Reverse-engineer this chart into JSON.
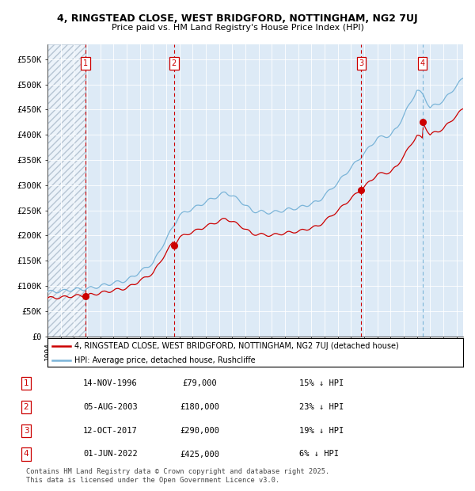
{
  "title_line1": "4, RINGSTEAD CLOSE, WEST BRIDGFORD, NOTTINGHAM, NG2 7UJ",
  "title_line2": "Price paid vs. HM Land Registry's House Price Index (HPI)",
  "xlim_start": 1994.0,
  "xlim_end": 2025.5,
  "ylim_min": 0,
  "ylim_max": 580000,
  "yticks": [
    0,
    50000,
    100000,
    150000,
    200000,
    250000,
    300000,
    350000,
    400000,
    450000,
    500000,
    550000
  ],
  "ytick_labels": [
    "£0",
    "£50K",
    "£100K",
    "£150K",
    "£200K",
    "£250K",
    "£300K",
    "£350K",
    "£400K",
    "£450K",
    "£500K",
    "£550K"
  ],
  "sale_dates": [
    1996.87,
    2003.59,
    2017.78,
    2022.42
  ],
  "sale_prices": [
    79000,
    180000,
    290000,
    425000
  ],
  "sale_labels": [
    "1",
    "2",
    "3",
    "4"
  ],
  "hpi_color": "#7ab4d8",
  "price_color": "#cc0000",
  "bg_color": "#ddeaf6",
  "legend_label_red": "4, RINGSTEAD CLOSE, WEST BRIDGFORD, NOTTINGHAM, NG2 7UJ (detached house)",
  "legend_label_blue": "HPI: Average price, detached house, Rushcliffe",
  "table_data": [
    [
      "1",
      "14-NOV-1996",
      "£79,000",
      "15% ↓ HPI"
    ],
    [
      "2",
      "05-AUG-2003",
      "£180,000",
      "23% ↓ HPI"
    ],
    [
      "3",
      "12-OCT-2017",
      "£290,000",
      "19% ↓ HPI"
    ],
    [
      "4",
      "01-JUN-2022",
      "£425,000",
      "6% ↓ HPI"
    ]
  ],
  "footer": "Contains HM Land Registry data © Crown copyright and database right 2025.\nThis data is licensed under the Open Government Licence v3.0."
}
